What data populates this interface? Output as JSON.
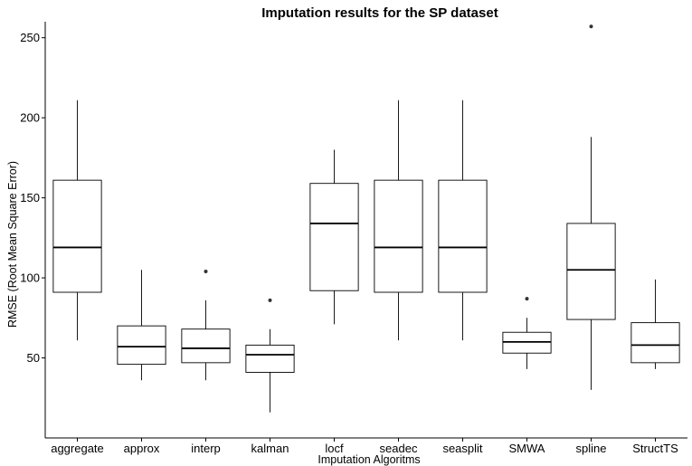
{
  "chart_data": {
    "type": "boxplot",
    "title": "Imputation results for the SP dataset",
    "xlabel": "Imputation Algoritms",
    "ylabel": "RMSE (Root Mean Square Error)",
    "ylim": [
      0,
      265
    ],
    "yticks": [
      50,
      100,
      150,
      200,
      250
    ],
    "grid": false,
    "categories": [
      "aggregate",
      "approx",
      "interp",
      "kalman",
      "locf",
      "seadec",
      "seasplit",
      "SMWA",
      "spline",
      "StructTS"
    ],
    "boxes": [
      {
        "min": 61,
        "q1": 91,
        "median": 119,
        "q3": 161,
        "max": 211,
        "outliers": []
      },
      {
        "min": 36,
        "q1": 46,
        "median": 57,
        "q3": 70,
        "max": 105,
        "outliers": []
      },
      {
        "min": 36,
        "q1": 47,
        "median": 56,
        "q3": 68,
        "max": 86,
        "outliers": [
          104
        ]
      },
      {
        "min": 16,
        "q1": 41,
        "median": 52,
        "q3": 58,
        "max": 68,
        "outliers": [
          86
        ]
      },
      {
        "min": 71,
        "q1": 92,
        "median": 134,
        "q3": 159,
        "max": 180,
        "outliers": []
      },
      {
        "min": 61,
        "q1": 91,
        "median": 119,
        "q3": 161,
        "max": 211,
        "outliers": []
      },
      {
        "min": 61,
        "q1": 91,
        "median": 119,
        "q3": 161,
        "max": 211,
        "outliers": []
      },
      {
        "min": 43,
        "q1": 53,
        "median": 60,
        "q3": 66,
        "max": 75,
        "outliers": [
          87
        ]
      },
      {
        "min": 30,
        "q1": 74,
        "median": 105,
        "q3": 134,
        "max": 188,
        "outliers": [
          257
        ]
      },
      {
        "min": 43,
        "q1": 47,
        "median": 58,
        "q3": 72,
        "max": 99,
        "outliers": []
      }
    ]
  }
}
